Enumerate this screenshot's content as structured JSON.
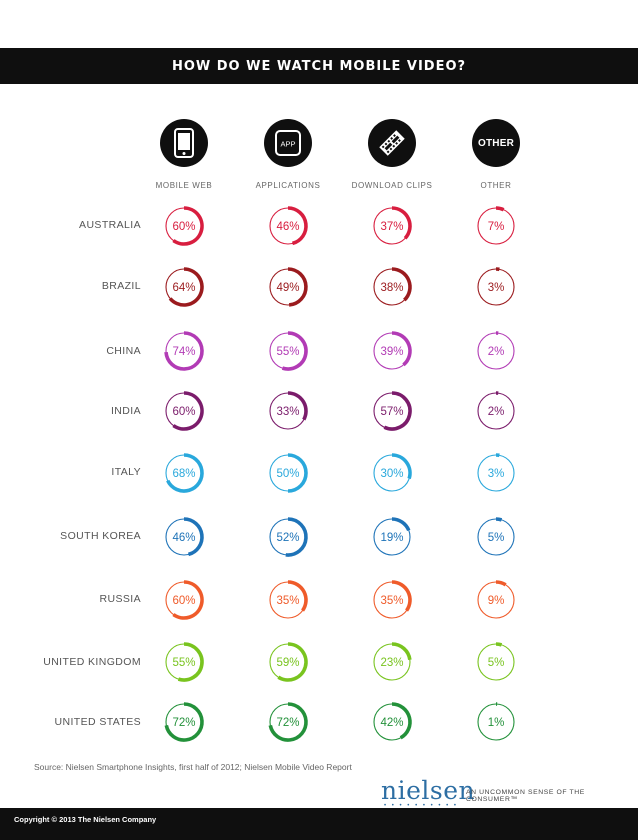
{
  "title": "HOW DO WE WATCH MOBILE VIDEO?",
  "columns": [
    {
      "label": "MOBILE WEB",
      "icon": "smartphone-icon"
    },
    {
      "label": "APPLICATIONS",
      "icon": "app-icon",
      "icon_text": "APP"
    },
    {
      "label": "DOWNLOAD CLIPS",
      "icon": "film-strip-icon"
    },
    {
      "label": "OTHER",
      "icon": "other-icon",
      "icon_text": "OTHER"
    }
  ],
  "source": "Source: Nielsen Smartphone Insights, first half of 2012; Nielsen Mobile Video Report",
  "brand": {
    "logo": "nielsen",
    "tagline": "AN UNCOMMON SENSE OF THE CONSUMER™"
  },
  "footer": "Copyright © 2013 The Nielsen Company",
  "chart_data": {
    "type": "table",
    "categories": [
      "MOBILE WEB",
      "APPLICATIONS",
      "DOWNLOAD CLIPS",
      "OTHER"
    ],
    "rows": [
      {
        "country": "AUSTRALIA",
        "color": "#d81e3f",
        "values": [
          60,
          46,
          37,
          7
        ]
      },
      {
        "country": "BRAZIL",
        "color": "#9b1b1e",
        "values": [
          64,
          49,
          38,
          3
        ]
      },
      {
        "country": "CHINA",
        "color": "#b23bb5",
        "values": [
          74,
          55,
          39,
          2
        ]
      },
      {
        "country": "INDIA",
        "color": "#7b1c6b",
        "values": [
          60,
          33,
          57,
          2
        ]
      },
      {
        "country": "ITALY",
        "color": "#29a8dc",
        "values": [
          68,
          50,
          30,
          3
        ]
      },
      {
        "country": "SOUTH KOREA",
        "color": "#1e73b8",
        "values": [
          46,
          52,
          19,
          5
        ]
      },
      {
        "country": "RUSSIA",
        "color": "#ef5b2a",
        "values": [
          60,
          35,
          35,
          9
        ]
      },
      {
        "country": "UNITED KINGDOM",
        "color": "#79c41f",
        "values": [
          55,
          59,
          23,
          5
        ]
      },
      {
        "country": "UNITED STATES",
        "color": "#23913a",
        "values": [
          72,
          72,
          42,
          1
        ]
      }
    ],
    "value_suffix": "%"
  }
}
